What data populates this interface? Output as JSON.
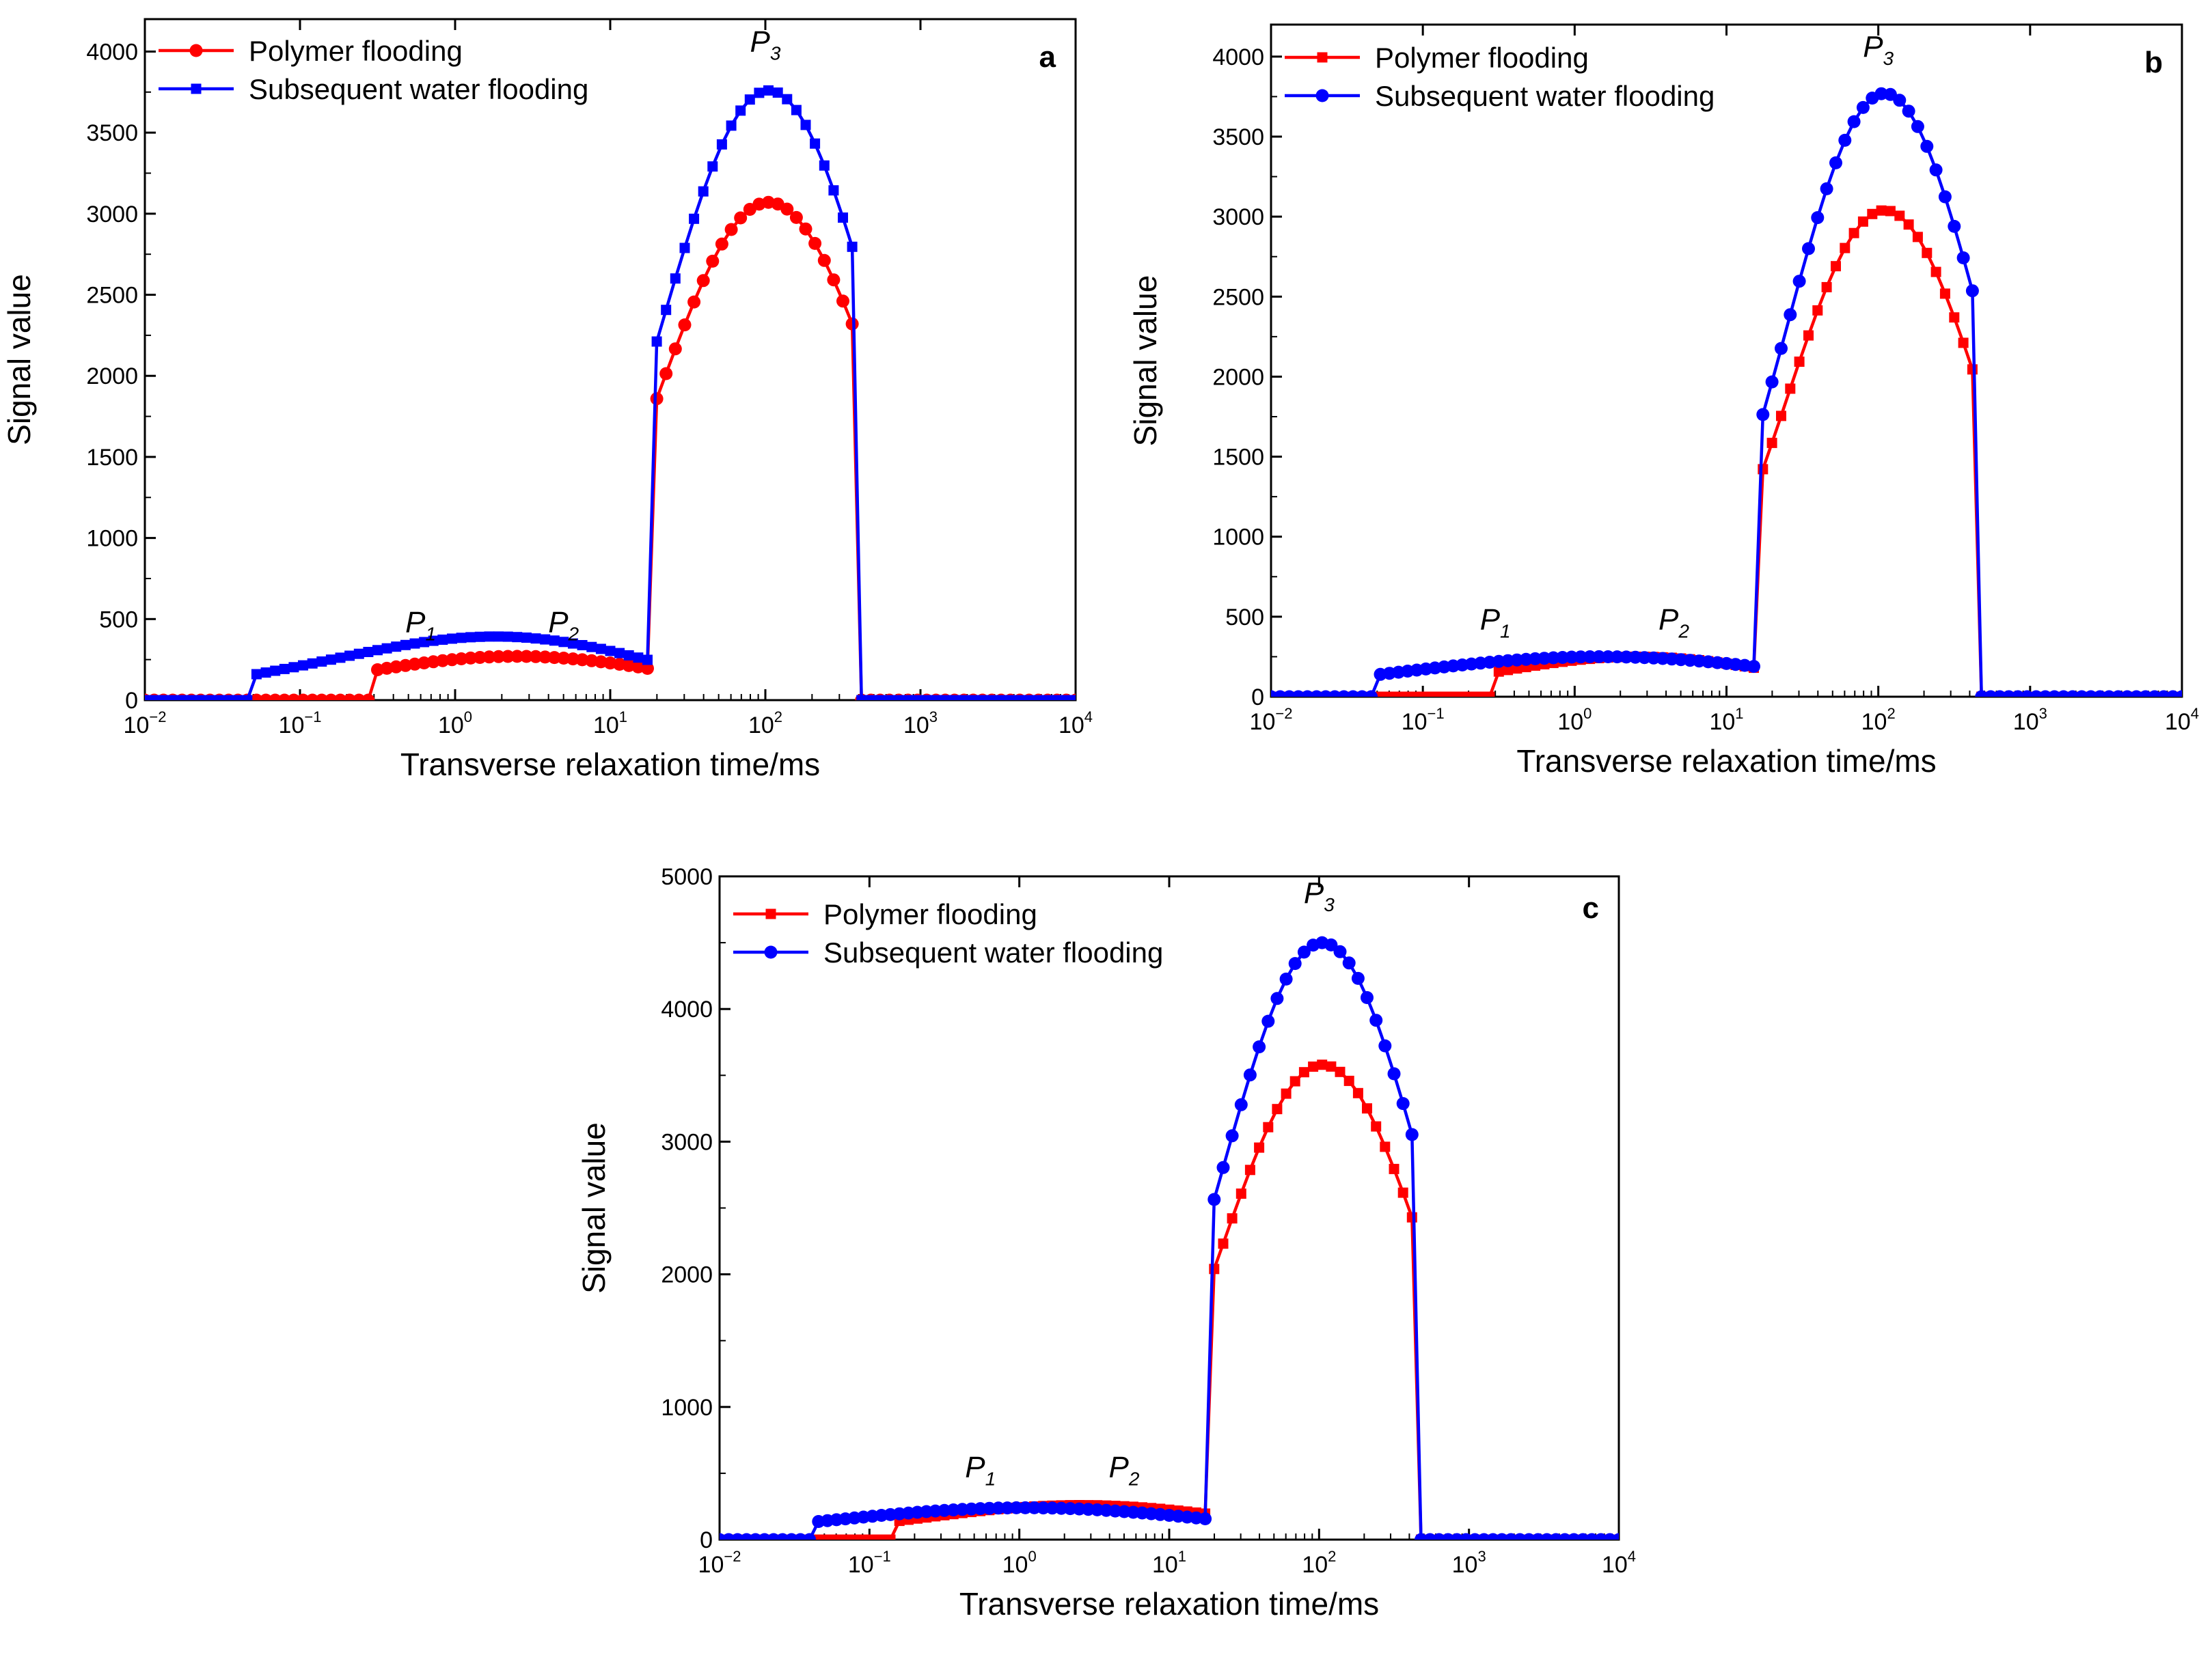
{
  "chart_data": [
    {
      "panel": "a",
      "type": "line",
      "x_scale": "log",
      "xlabel": "Transverse relaxation time/ms",
      "ylabel": "Signal value",
      "xlim": [
        0.01,
        10000
      ],
      "ylim": [
        0,
        4200
      ],
      "x_ticks": [
        {
          "base": "10",
          "exp": "−2"
        },
        {
          "base": "10",
          "exp": "−1"
        },
        {
          "base": "10",
          "exp": "0"
        },
        {
          "base": "10",
          "exp": "1"
        },
        {
          "base": "10",
          "exp": "2"
        },
        {
          "base": "10",
          "exp": "3"
        },
        {
          "base": "10",
          "exp": "4"
        }
      ],
      "y_ticks": [
        "0",
        "500",
        "1000",
        "1500",
        "2000",
        "2500",
        "3000",
        "3500",
        "4000"
      ],
      "legend_position": "top-left",
      "peak_labels": [
        {
          "letter": "P",
          "sub": "1",
          "x": 0.6,
          "y": 420
        },
        {
          "letter": "P",
          "sub": "2",
          "x": 5.0,
          "y": 420
        },
        {
          "letter": "P",
          "sub": "3",
          "x": 100,
          "y": 4000
        }
      ],
      "series": [
        {
          "name": "Polymer flooding",
          "color": "#ff0000",
          "marker": "circle",
          "peaks": [
            {
              "mu": 2.5,
              "sigma": 1.05,
              "amp": 270,
              "from": 0.3,
              "to": 18
            },
            {
              "mu": 105,
              "sigma": 0.72,
              "amp": 3070,
              "from": 18,
              "to": 380
            }
          ]
        },
        {
          "name": "Subsequent water flooding",
          "color": "#0000ff",
          "marker": "square",
          "peaks": [
            {
              "mu": 0.7,
              "sigma": 1.2,
              "amp": 200,
              "from": 0.05,
              "to": 18
            },
            {
              "mu": 3.0,
              "sigma": 0.9,
              "amp": 210,
              "from": 0.05,
              "to": 18
            },
            {
              "mu": 105,
              "sigma": 0.7,
              "amp": 3760,
              "from": 18,
              "to": 380
            }
          ]
        }
      ]
    },
    {
      "panel": "b",
      "type": "line",
      "x_scale": "log",
      "xlabel": "Transverse relaxation time/ms",
      "ylabel": "Signal value",
      "xlim": [
        0.01,
        10000
      ],
      "ylim": [
        0,
        4200
      ],
      "x_ticks": [
        {
          "base": "10",
          "exp": "−2"
        },
        {
          "base": "10",
          "exp": "−1"
        },
        {
          "base": "10",
          "exp": "0"
        },
        {
          "base": "10",
          "exp": "1"
        },
        {
          "base": "10",
          "exp": "2"
        },
        {
          "base": "10",
          "exp": "3"
        },
        {
          "base": "10",
          "exp": "4"
        }
      ],
      "y_ticks": [
        "0",
        "500",
        "1000",
        "1500",
        "2000",
        "2500",
        "3000",
        "3500",
        "4000"
      ],
      "legend_position": "top-left",
      "peak_labels": [
        {
          "letter": "P",
          "sub": "1",
          "x": 0.3,
          "y": 420
        },
        {
          "letter": "P",
          "sub": "2",
          "x": 4.5,
          "y": 420
        },
        {
          "letter": "P",
          "sub": "3",
          "x": 100,
          "y": 4000
        }
      ],
      "series": [
        {
          "name": "Polymer flooding",
          "color": "#ff0000",
          "marker": "square",
          "peaks": [
            {
              "mu": 2.6,
              "sigma": 0.95,
              "amp": 250,
              "from": 0.3,
              "to": 17
            },
            {
              "mu": 110,
              "sigma": 0.65,
              "amp": 3040,
              "from": 17,
              "to": 420
            }
          ]
        },
        {
          "name": "Subsequent water flooding",
          "color": "#0000ff",
          "marker": "circle",
          "peaks": [
            {
              "mu": 1.5,
              "sigma": 1.35,
              "amp": 250,
              "from": 0.05,
              "to": 17
            },
            {
              "mu": 110,
              "sigma": 0.65,
              "amp": 3770,
              "from": 17,
              "to": 420
            }
          ]
        }
      ]
    },
    {
      "panel": "c",
      "type": "line",
      "x_scale": "log",
      "xlabel": "Transverse relaxation time/ms",
      "ylabel": "Signal value",
      "xlim": [
        0.01,
        10000
      ],
      "ylim": [
        0,
        5000
      ],
      "x_ticks": [
        {
          "base": "10",
          "exp": "−2"
        },
        {
          "base": "10",
          "exp": "−1"
        },
        {
          "base": "10",
          "exp": "0"
        },
        {
          "base": "10",
          "exp": "1"
        },
        {
          "base": "10",
          "exp": "2"
        },
        {
          "base": "10",
          "exp": "3"
        },
        {
          "base": "10",
          "exp": "4"
        }
      ],
      "y_ticks": [
        "0",
        "1000",
        "2000",
        "3000",
        "4000",
        "5000"
      ],
      "legend_position": "top-left",
      "peak_labels": [
        {
          "letter": "P",
          "sub": "1",
          "x": 0.55,
          "y": 470
        },
        {
          "letter": "P",
          "sub": "2",
          "x": 5.0,
          "y": 470
        },
        {
          "letter": "P",
          "sub": "3",
          "x": 100,
          "y": 4800
        }
      ],
      "series": [
        {
          "name": "Polymer flooding",
          "color": "#ff0000",
          "marker": "square",
          "peaks": [
            {
              "mu": 2.6,
              "sigma": 1.1,
              "amp": 260,
              "from": 0.15,
              "to": 18
            },
            {
              "mu": 105,
              "sigma": 0.68,
              "amp": 3580,
              "from": 18,
              "to": 420
            }
          ]
        },
        {
          "name": "Subsequent water flooding",
          "color": "#0000ff",
          "marker": "circle",
          "peaks": [
            {
              "mu": 1.1,
              "sigma": 1.3,
              "amp": 240,
              "from": 0.04,
              "to": 18
            },
            {
              "mu": 105,
              "sigma": 0.68,
              "amp": 4500,
              "from": 18,
              "to": 420
            }
          ]
        }
      ]
    }
  ]
}
